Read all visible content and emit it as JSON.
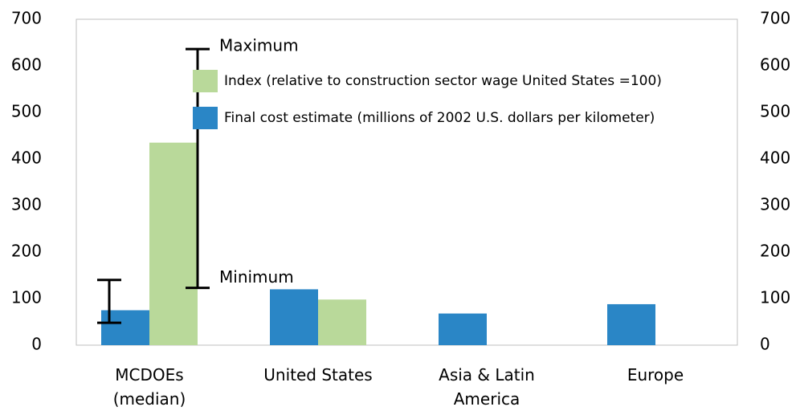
{
  "chart_data": {
    "type": "bar",
    "categories": [
      "MCDOEs\n(median)",
      "United States",
      "Asia & Latin\nAmerica",
      "Europe"
    ],
    "series": [
      {
        "name": "Final cost estimate (millions of 2002 U.S. dollars per kilometer)",
        "color": "#2a86c6",
        "values": [
          75,
          120,
          68,
          88
        ],
        "error_low": [
          48,
          null,
          null,
          null
        ],
        "error_high": [
          140,
          null,
          null,
          null
        ]
      },
      {
        "name": "Index (relative to construction sector wage United States =100)",
        "color": "#b9d99a",
        "values": [
          435,
          98,
          null,
          null
        ],
        "error_low": [
          123,
          null,
          null,
          null
        ],
        "error_high": [
          636,
          null,
          null,
          null
        ]
      }
    ],
    "annotations": [
      "Maximum",
      "Minimum"
    ],
    "ylim": [
      0,
      700
    ],
    "yticks": [
      0,
      100,
      200,
      300,
      400,
      500,
      600,
      700
    ],
    "y2lim": [
      0,
      700
    ],
    "y2ticks": [
      0,
      100,
      200,
      300,
      400,
      500,
      600,
      700
    ],
    "legend": "top-right"
  }
}
